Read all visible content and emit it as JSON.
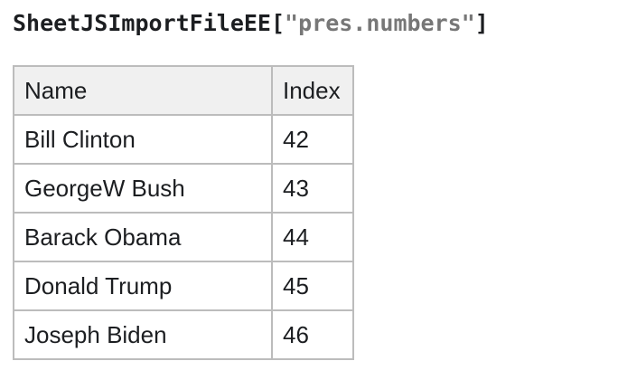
{
  "title": {
    "function_name": "SheetJSImportFileEE",
    "open_bracket": "[",
    "string_argument": "\"pres.numbers\"",
    "close_bracket": "]"
  },
  "table": {
    "headers": [
      "Name",
      "Index"
    ],
    "rows": [
      {
        "name": "Bill Clinton",
        "index": "42"
      },
      {
        "name": "GeorgeW Bush",
        "index": "43"
      },
      {
        "name": "Barack Obama",
        "index": "44"
      },
      {
        "name": "Donald Trump",
        "index": "45"
      },
      {
        "name": "Joseph Biden",
        "index": "46"
      }
    ]
  },
  "colors": {
    "text": "#1c1e21",
    "code_string": "#777777",
    "table_border": "#bcbcbc",
    "header_background": "#f0f0f0"
  }
}
